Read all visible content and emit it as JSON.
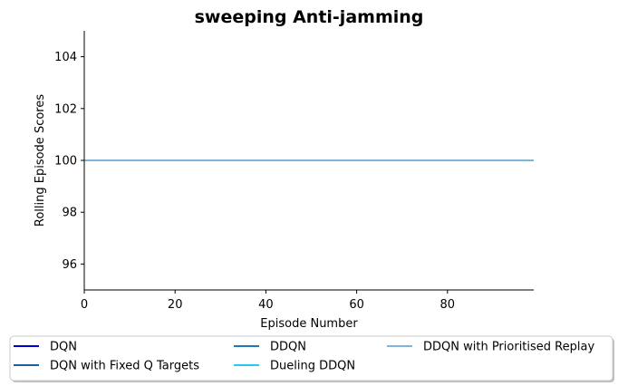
{
  "chart_data": {
    "type": "line",
    "title": "sweeping Anti-jamming",
    "xlabel": "Episode Number",
    "ylabel": "Rolling Episode Scores",
    "xlim": [
      0,
      99
    ],
    "ylim": [
      95,
      105
    ],
    "x_ticks": [
      0,
      20,
      40,
      60,
      80
    ],
    "y_ticks": [
      96,
      98,
      100,
      102,
      104
    ],
    "grid": false,
    "legend_position": "bottom-center",
    "series": [
      {
        "name": "DQN",
        "color": "#0000cc",
        "x": [
          0,
          99
        ],
        "y": [
          100,
          100
        ]
      },
      {
        "name": "DQN with Fixed Q Targets",
        "color": "#1f5f99",
        "x": [
          0,
          99
        ],
        "y": [
          100,
          100
        ]
      },
      {
        "name": "DDQN",
        "color": "#1f77b4",
        "x": [
          0,
          99
        ],
        "y": [
          100,
          100
        ]
      },
      {
        "name": "Dueling DDQN",
        "color": "#22ccee",
        "x": [
          0,
          99
        ],
        "y": [
          100,
          100
        ]
      },
      {
        "name": "DDQN with Prioritised Replay",
        "color": "#7fb3d9",
        "x": [
          0,
          99
        ],
        "y": [
          100,
          100
        ]
      }
    ]
  }
}
